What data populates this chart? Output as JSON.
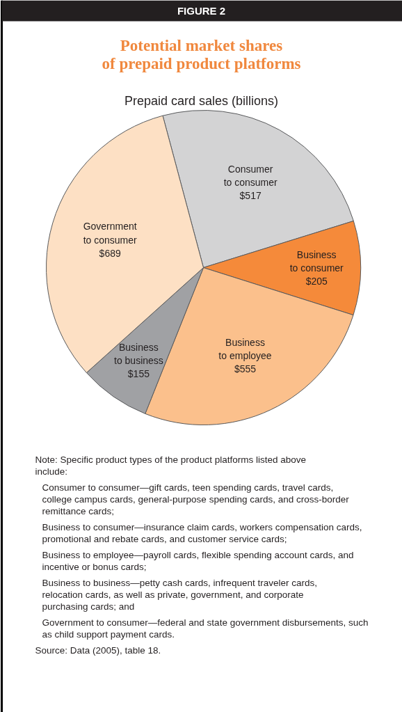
{
  "chart_data": {
    "type": "pie",
    "title": "Potential market shares\nof prepaid product platforms",
    "subtitle": "Prepaid card sales (billions)",
    "categories": [
      "Consumer to consumer",
      "Business to consumer",
      "Business to employee",
      "Business to business",
      "Government to consumer"
    ],
    "values": [
      517,
      205,
      555,
      155,
      689
    ],
    "value_labels": [
      "$517",
      "$205",
      "$555",
      "$155",
      "$689"
    ],
    "colors": [
      "#d3d3d4",
      "#f58a3a",
      "#fbc08c",
      "#a0a1a4",
      "#fde0c4"
    ],
    "annotations": [
      "FIGURE 2",
      "Note: Specific product types of the product platforms listed above include:",
      "Consumer to consumer—gift cards, teen spending cards, travel cards, college campus cards, general-purpose spending cards, and cross-border remittance cards;",
      "Business to consumer—insurance claim cards, workers compensation cards, promotional and rebate cards, and customer service cards;",
      "Business to employee—payroll cards, flexible spending account cards, and incentive or bonus cards;",
      "Business to business—petty cash cards, infrequent traveler cards, relocation cards, as well as private, government, and corporate purchasing cards; and",
      "Government to consumer—federal and state government disbursements, such as child support payment cards.",
      "Source: Data (2005), table 18."
    ]
  }
}
